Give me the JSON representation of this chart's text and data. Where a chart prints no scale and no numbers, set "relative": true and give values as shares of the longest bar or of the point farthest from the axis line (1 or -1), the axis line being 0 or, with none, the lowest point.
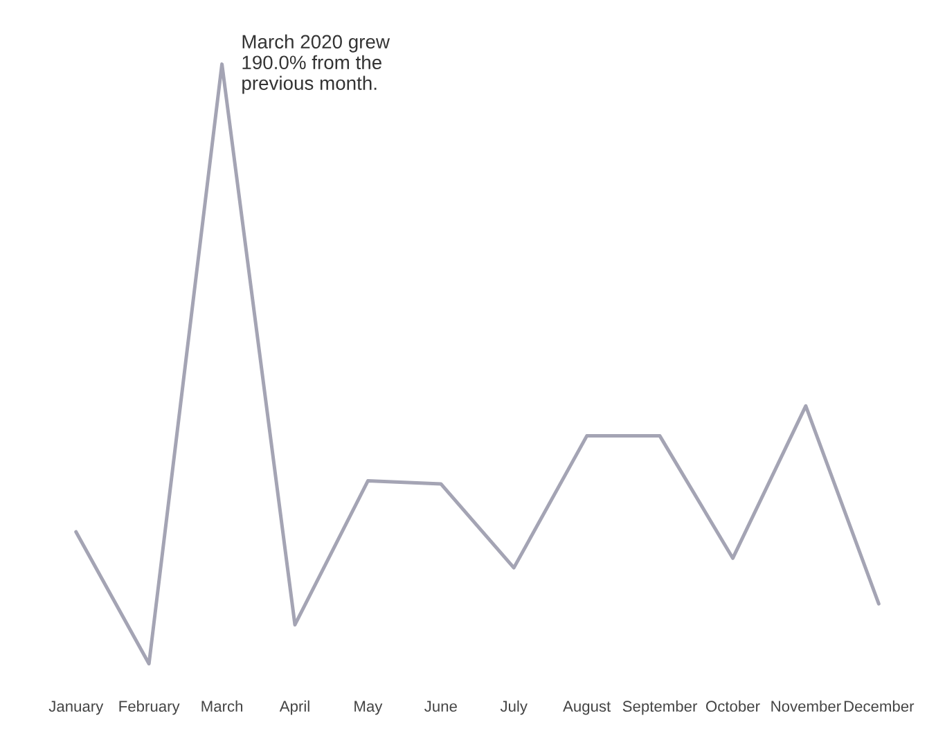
{
  "chart_data": {
    "type": "line",
    "relative": true,
    "categories": [
      "January",
      "February",
      "March",
      "April",
      "May",
      "June",
      "July",
      "August",
      "September",
      "October",
      "November",
      "December"
    ],
    "series": [
      {
        "color": "#a4a4b4",
        "values": [
          0.22,
          0,
          1,
          0.065,
          0.305,
          0.3,
          0.16,
          0.38,
          0.38,
          0.176,
          0.43,
          0.1
        ]
      }
    ],
    "annotations": [
      {
        "text": "March 2020 grew\n190.0% from the\nprevious month.",
        "x": "March",
        "y": 1
      }
    ],
    "grid": false,
    "legend": false,
    "marker": "none",
    "line_style": "solid"
  }
}
